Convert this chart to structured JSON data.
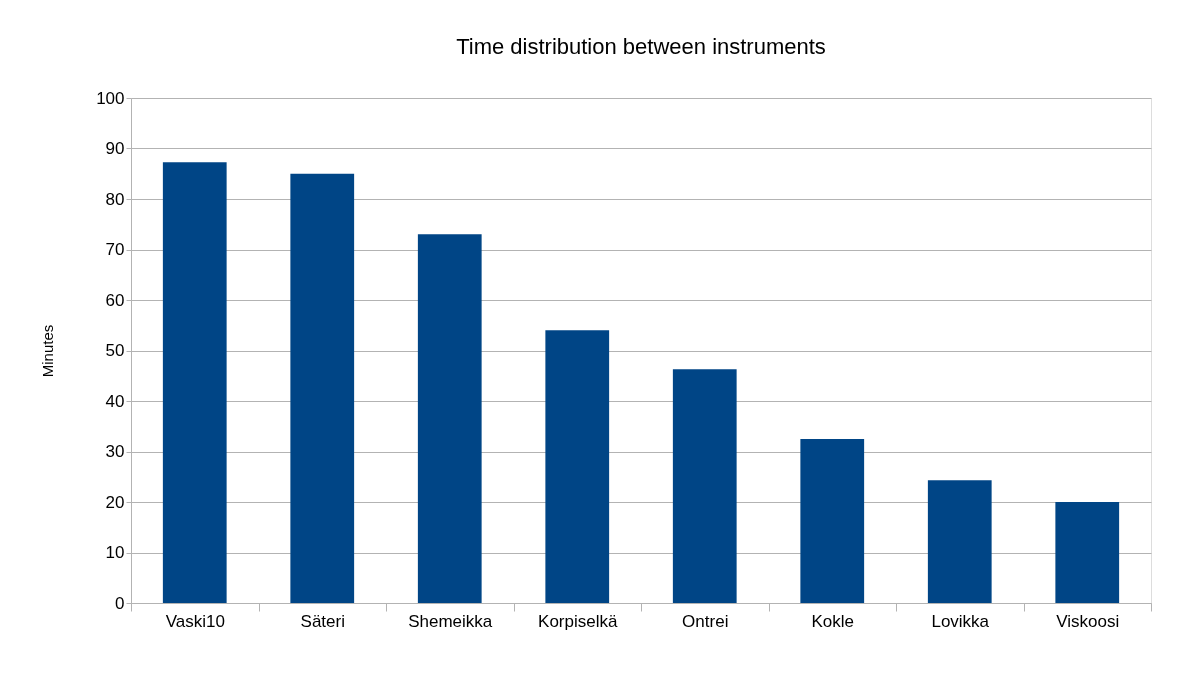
{
  "chart_data": {
    "type": "bar",
    "title": "Time distribution between instruments",
    "ylabel": "Minutes",
    "categories": [
      "Vaski10",
      "Säteri",
      "Shemeikka",
      "Korpiselkä",
      "Ontrei",
      "Kokle",
      "Lovikka",
      "Viskoosi"
    ],
    "values": [
      87.3,
      85,
      73,
      54,
      46.3,
      32.5,
      24.3,
      20
    ],
    "color": "#004586",
    "ylim": [
      0,
      100
    ],
    "yticks": [
      0,
      10,
      20,
      30,
      40,
      50,
      60,
      70,
      80,
      90,
      100
    ],
    "grid": "y"
  }
}
